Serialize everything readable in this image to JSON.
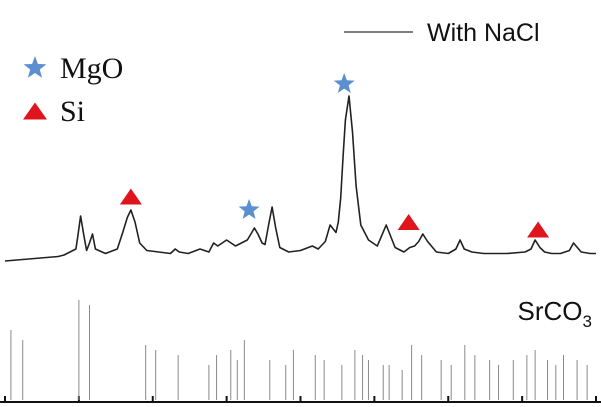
{
  "chart_data": {
    "type": "line",
    "title": "",
    "xlabel": "",
    "ylabel": "",
    "xlim": [
      0,
      100
    ],
    "ylim": [
      0,
      100
    ],
    "grid": false,
    "series": [
      {
        "name": "With NaCl",
        "color": "#222222",
        "x": [
          0,
          3,
          6,
          9,
          10,
          12,
          12.3,
          12.8,
          13.3,
          13.8,
          14.3,
          14.8,
          15.3,
          17,
          19,
          20,
          20.7,
          21.3,
          22,
          22.8,
          24,
          26,
          28,
          28.8,
          29.5,
          31,
          33,
          34.5,
          35.3,
          36,
          37.5,
          39,
          40,
          41,
          41.6,
          42.2,
          42.8,
          43.5,
          44,
          44.6,
          45.2,
          45.8,
          46.5,
          48,
          50,
          52,
          53,
          54.2,
          55,
          56,
          56.4,
          56.8,
          57.2,
          57.6,
          58.2,
          58.8,
          59.4,
          60.2,
          61.5,
          63,
          64.5,
          66,
          67.5,
          68.5,
          69.3,
          70,
          70.7,
          71.5,
          73,
          75,
          76.3,
          77,
          77.7,
          79,
          81,
          83,
          85,
          88,
          89,
          89.7,
          90.5,
          91.3,
          92.5,
          94,
          95.5,
          96.2,
          97.5,
          99,
          100
        ],
        "y": [
          13,
          13.5,
          14,
          14.5,
          15,
          17,
          21,
          28,
          22,
          16.5,
          19,
          22,
          17,
          15.5,
          17,
          23,
          27.5,
          30,
          26,
          19,
          16.5,
          16,
          15.5,
          17,
          16,
          15.5,
          17,
          16,
          19,
          18,
          20,
          18,
          19,
          20,
          22,
          24,
          22,
          19,
          18.5,
          25,
          31,
          24,
          17.5,
          16,
          16.5,
          18,
          17,
          19.5,
          25,
          22.5,
          26,
          34,
          48,
          60,
          68,
          56,
          38,
          25,
          20,
          18,
          25,
          17.5,
          16,
          17.5,
          18,
          19.5,
          22,
          19.5,
          16,
          15.5,
          17,
          20,
          17,
          16,
          15.5,
          15.5,
          15.5,
          16,
          17,
          20,
          17.5,
          16,
          15.5,
          15.5,
          16.5,
          19,
          16,
          15.5,
          15.5
        ]
      }
    ],
    "legend": {
      "position": "top-right",
      "entries": [
        "With NaCl"
      ]
    },
    "markers": [
      {
        "name": "MgO",
        "symbol": "star",
        "color": "#5b8fcf",
        "positions": [
          {
            "x": 41.3,
            "y": 30
          },
          {
            "x": 57.4,
            "y": 72
          }
        ]
      },
      {
        "name": "Si",
        "symbol": "triangle",
        "color": "#e0141c",
        "positions": [
          {
            "x": 21.3,
            "y": 34.5
          },
          {
            "x": 68.3,
            "y": 26
          },
          {
            "x": 90.2,
            "y": 23.5
          }
        ]
      }
    ],
    "reference": {
      "label_main": "SrCO",
      "label_sub": "3",
      "line_positions": [
        1,
        3,
        12.5,
        14.3,
        23.8,
        25.5,
        29.3,
        34.5,
        35.8,
        38.2,
        39.3,
        40.5,
        44.8,
        47.5,
        48.8,
        52.5,
        54,
        57,
        59.2,
        60.5,
        61.5,
        64,
        65,
        67.2,
        68.8,
        70.5,
        73.8,
        75.5,
        77.8,
        79.5,
        82,
        83.5,
        86,
        88.3,
        89.7,
        91.8,
        93.2,
        94.5,
        96.8,
        98.5
      ],
      "line_heights": [
        0.7,
        0.6,
        1.0,
        0.95,
        0.55,
        0.5,
        0.45,
        0.35,
        0.45,
        0.5,
        0.4,
        0.6,
        0.4,
        0.35,
        0.5,
        0.45,
        0.4,
        0.35,
        0.5,
        0.45,
        0.4,
        0.35,
        0.35,
        0.3,
        0.55,
        0.45,
        0.4,
        0.35,
        0.55,
        0.45,
        0.4,
        0.35,
        0.4,
        0.45,
        0.5,
        0.4,
        0.35,
        0.45,
        0.4,
        0.35
      ]
    },
    "x_ticks": [
      0,
      12.5,
      25,
      37.5,
      50,
      62.5,
      75,
      87.5,
      100
    ]
  }
}
